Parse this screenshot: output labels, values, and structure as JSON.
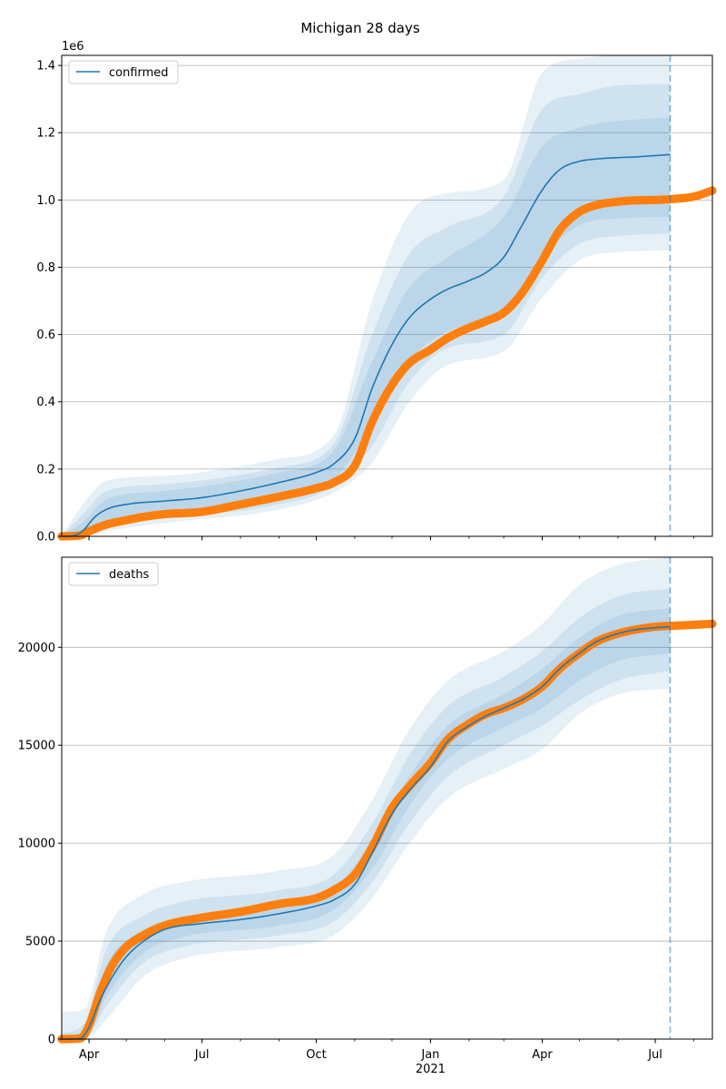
{
  "figure": {
    "title": "Michigan 28 days"
  },
  "colors": {
    "model": "#1f77b4",
    "observed": "#ff7f0e",
    "band": "#1f77b4",
    "grid": "#b0b0b0",
    "vline": "#1f77b4"
  },
  "chart_data": [
    {
      "type": "line",
      "panel": "confirmed",
      "title": "Michigan 28 days",
      "xlabel": "",
      "ylabel": "",
      "y_offset_label": "1e6",
      "legend": {
        "labels": [
          "confirmed"
        ],
        "placement": "top-left"
      },
      "grid": "y",
      "x_range": [
        "2020-03-10",
        "2021-08-16"
      ],
      "ylim": [
        0,
        1430000
      ],
      "y_ticks": [
        {
          "value": 0,
          "label": "0.0"
        },
        {
          "value": 200000,
          "label": "0.2"
        },
        {
          "value": 400000,
          "label": "0.4"
        },
        {
          "value": 600000,
          "label": "0.6"
        },
        {
          "value": 800000,
          "label": "0.8"
        },
        {
          "value": 1000000,
          "label": "1.0"
        },
        {
          "value": 1200000,
          "label": "1.2"
        },
        {
          "value": 1400000,
          "label": "1.4"
        }
      ],
      "forecast_date": "2021-07-13",
      "series": [
        {
          "name": "confirmed",
          "role": "model median",
          "x": [
            "2020-03-10",
            "2020-03-20",
            "2020-03-28",
            "2020-04-05",
            "2020-04-15",
            "2020-05-01",
            "2020-06-01",
            "2020-07-01",
            "2020-08-01",
            "2020-09-01",
            "2020-10-01",
            "2020-10-15",
            "2020-11-01",
            "2020-11-15",
            "2020-12-01",
            "2020-12-15",
            "2021-01-01",
            "2021-01-15",
            "2021-02-01",
            "2021-02-15",
            "2021-03-01",
            "2021-03-15",
            "2021-04-01",
            "2021-04-15",
            "2021-05-01",
            "2021-05-15",
            "2021-06-01",
            "2021-06-15",
            "2021-07-01",
            "2021-07-13"
          ],
          "y": [
            0,
            2000,
            20000,
            55000,
            80000,
            95000,
            105000,
            115000,
            135000,
            160000,
            190000,
            215000,
            290000,
            440000,
            570000,
            650000,
            705000,
            735000,
            760000,
            785000,
            830000,
            920000,
            1030000,
            1090000,
            1115000,
            1122000,
            1126000,
            1128000,
            1132000,
            1135000
          ]
        },
        {
          "name": "",
          "role": "observed",
          "x": [
            "2020-03-10",
            "2020-03-25",
            "2020-04-01",
            "2020-04-15",
            "2020-05-01",
            "2020-05-15",
            "2020-06-01",
            "2020-07-01",
            "2020-08-01",
            "2020-09-01",
            "2020-10-01",
            "2020-10-15",
            "2020-11-01",
            "2020-11-15",
            "2020-12-01",
            "2020-12-15",
            "2021-01-01",
            "2021-01-15",
            "2021-02-01",
            "2021-02-15",
            "2021-03-01",
            "2021-03-15",
            "2021-04-01",
            "2021-04-15",
            "2021-05-01",
            "2021-05-15",
            "2021-06-01",
            "2021-06-15",
            "2021-07-01",
            "2021-07-15",
            "2021-08-01",
            "2021-08-16"
          ],
          "y": [
            0,
            3000,
            15000,
            35000,
            48000,
            58000,
            66000,
            73000,
            95000,
            118000,
            143000,
            160000,
            210000,
            340000,
            450000,
            515000,
            555000,
            590000,
            620000,
            640000,
            665000,
            720000,
            820000,
            910000,
            965000,
            985000,
            995000,
            999000,
            1000000,
            1003000,
            1010000,
            1028000
          ]
        }
      ],
      "bands": [
        {
          "name": "",
          "x": [
            "2020-03-10",
            "2020-03-28",
            "2020-04-15",
            "2020-06-01",
            "2020-09-01",
            "2020-10-15",
            "2020-11-15",
            "2020-12-15",
            "2021-01-15",
            "2021-03-01",
            "2021-04-01",
            "2021-05-01",
            "2021-06-01",
            "2021-07-13"
          ],
          "lower": [
            0,
            0,
            45000,
            70000,
            115000,
            170000,
            330000,
            520000,
            610000,
            660000,
            830000,
            925000,
            945000,
            950000
          ],
          "upper": [
            0,
            45000,
            110000,
            135000,
            190000,
            255000,
            520000,
            740000,
            830000,
            950000,
            1160000,
            1215000,
            1235000,
            1245000
          ]
        },
        {
          "name": "",
          "x": [
            "2020-03-10",
            "2020-03-28",
            "2020-04-15",
            "2020-06-01",
            "2020-09-01",
            "2020-10-15",
            "2020-11-15",
            "2020-12-15",
            "2021-01-15",
            "2021-03-01",
            "2021-04-01",
            "2021-05-01",
            "2021-06-01",
            "2021-07-13"
          ],
          "lower": [
            0,
            0,
            30000,
            55000,
            95000,
            150000,
            270000,
            460000,
            560000,
            600000,
            770000,
            870000,
            893000,
            900000
          ],
          "upper": [
            0,
            70000,
            135000,
            155000,
            205000,
            275000,
            600000,
            840000,
            920000,
            1010000,
            1270000,
            1315000,
            1340000,
            1345000
          ]
        },
        {
          "name": "",
          "x": [
            "2020-03-10",
            "2020-03-28",
            "2020-04-15",
            "2020-06-01",
            "2020-09-01",
            "2020-10-15",
            "2020-11-15",
            "2020-12-15",
            "2021-01-15",
            "2021-03-01",
            "2021-04-01",
            "2021-05-01",
            "2021-06-01",
            "2021-07-13"
          ],
          "lower": [
            0,
            0,
            15000,
            40000,
            80000,
            130000,
            220000,
            400000,
            510000,
            550000,
            710000,
            820000,
            845000,
            850000
          ],
          "upper": [
            0,
            100000,
            165000,
            180000,
            230000,
            300000,
            700000,
            960000,
            1020000,
            1060000,
            1380000,
            1420000,
            1430000,
            1430000
          ]
        }
      ]
    },
    {
      "type": "line",
      "panel": "deaths",
      "title": "",
      "xlabel": "",
      "ylabel": "",
      "legend": {
        "labels": [
          "deaths"
        ],
        "placement": "top-left"
      },
      "grid": "y",
      "x_range": [
        "2020-03-10",
        "2021-08-16"
      ],
      "ylim": [
        0,
        24600
      ],
      "y_ticks": [
        {
          "value": 0,
          "label": "0"
        },
        {
          "value": 5000,
          "label": "5000"
        },
        {
          "value": 10000,
          "label": "10000"
        },
        {
          "value": 15000,
          "label": "15000"
        },
        {
          "value": 20000,
          "label": "20000"
        }
      ],
      "x_ticks": [
        {
          "value": "2020-04-01",
          "label": "Apr"
        },
        {
          "value": "2020-07-01",
          "label": "Jul"
        },
        {
          "value": "2020-10-01",
          "label": "Oct"
        },
        {
          "value": "2021-01-01",
          "label": "Jan"
        },
        {
          "value": "2021-04-01",
          "label": "Apr"
        },
        {
          "value": "2021-07-01",
          "label": "Jul"
        }
      ],
      "x_year_label": {
        "value": "2021-01-01",
        "label": "2021"
      },
      "forecast_date": "2021-07-13",
      "series": [
        {
          "name": "deaths",
          "role": "model median",
          "x": [
            "2020-03-10",
            "2020-03-25",
            "2020-04-01",
            "2020-04-10",
            "2020-04-20",
            "2020-05-01",
            "2020-05-15",
            "2020-06-01",
            "2020-07-01",
            "2020-08-01",
            "2020-09-01",
            "2020-10-01",
            "2020-10-15",
            "2020-11-01",
            "2020-11-15",
            "2020-12-01",
            "2020-12-15",
            "2021-01-01",
            "2021-01-15",
            "2021-02-01",
            "2021-02-15",
            "2021-03-01",
            "2021-03-15",
            "2021-04-01",
            "2021-04-15",
            "2021-05-01",
            "2021-05-15",
            "2021-06-01",
            "2021-06-15",
            "2021-07-01",
            "2021-07-13"
          ],
          "y": [
            0,
            20,
            600,
            2000,
            3200,
            4200,
            5000,
            5600,
            5900,
            6100,
            6400,
            6800,
            7100,
            7900,
            9500,
            11500,
            12700,
            13900,
            15200,
            16000,
            16500,
            16900,
            17300,
            18000,
            18900,
            19700,
            20300,
            20700,
            20900,
            21000,
            21050
          ]
        },
        {
          "name": "",
          "role": "observed",
          "x": [
            "2020-03-10",
            "2020-03-25",
            "2020-04-01",
            "2020-04-10",
            "2020-04-20",
            "2020-05-01",
            "2020-05-15",
            "2020-06-01",
            "2020-07-01",
            "2020-08-01",
            "2020-09-01",
            "2020-10-01",
            "2020-10-15",
            "2020-11-01",
            "2020-11-15",
            "2020-12-01",
            "2020-12-15",
            "2021-01-01",
            "2021-01-15",
            "2021-02-01",
            "2021-02-15",
            "2021-03-01",
            "2021-03-15",
            "2021-04-01",
            "2021-04-15",
            "2021-05-01",
            "2021-05-15",
            "2021-06-01",
            "2021-06-15",
            "2021-07-01",
            "2021-07-15",
            "2021-08-01",
            "2021-08-16"
          ],
          "y": [
            0,
            40,
            700,
            2400,
            3800,
            4700,
            5300,
            5800,
            6200,
            6500,
            6900,
            7200,
            7600,
            8400,
            9800,
            11800,
            12900,
            14100,
            15300,
            16100,
            16600,
            16900,
            17300,
            18000,
            18900,
            19700,
            20300,
            20700,
            20900,
            21050,
            21100,
            21150,
            21200
          ]
        }
      ],
      "bands": [
        {
          "name": "",
          "x": [
            "2020-03-10",
            "2020-03-28",
            "2020-04-15",
            "2020-05-15",
            "2020-06-15",
            "2020-09-01",
            "2020-10-15",
            "2020-11-15",
            "2020-12-15",
            "2021-01-15",
            "2021-03-01",
            "2021-04-01",
            "2021-05-01",
            "2021-06-01",
            "2021-07-13"
          ],
          "lower": [
            0,
            0,
            2200,
            4400,
            5200,
            5800,
            6600,
            8700,
            11900,
            14300,
            15900,
            16900,
            18300,
            19300,
            19700
          ],
          "upper": [
            0,
            500,
            3800,
            5600,
            6200,
            6900,
            7700,
            10100,
            13400,
            16000,
            17600,
            18900,
            20500,
            21600,
            22000
          ]
        },
        {
          "name": "",
          "x": [
            "2020-03-10",
            "2020-03-28",
            "2020-04-15",
            "2020-05-15",
            "2020-06-15",
            "2020-09-01",
            "2020-10-15",
            "2020-11-15",
            "2020-12-15",
            "2021-01-15",
            "2021-03-01",
            "2021-04-01",
            "2021-05-01",
            "2021-06-01",
            "2021-07-13"
          ],
          "lower": [
            0,
            0,
            1700,
            3900,
            4700,
            5300,
            6000,
            8000,
            11000,
            13400,
            15000,
            16000,
            17300,
            18300,
            18800
          ],
          "upper": [
            300,
            800,
            4600,
            6300,
            7000,
            7600,
            8400,
            11000,
            14500,
            17000,
            18500,
            19800,
            21500,
            22600,
            23000
          ]
        },
        {
          "name": "",
          "x": [
            "2020-03-10",
            "2020-03-28",
            "2020-04-15",
            "2020-05-15",
            "2020-06-15",
            "2020-09-01",
            "2020-10-15",
            "2020-11-15",
            "2020-12-15",
            "2021-01-15",
            "2021-03-01",
            "2021-04-01",
            "2021-05-01",
            "2021-06-01",
            "2021-07-13"
          ],
          "lower": [
            0,
            0,
            1000,
            3200,
            4100,
            4700,
            5300,
            7200,
            10000,
            12300,
            13800,
            14800,
            16600,
            17600,
            17900
          ],
          "upper": [
            1400,
            1500,
            5500,
            7400,
            8000,
            8600,
            9400,
            12200,
            15800,
            18300,
            19800,
            21200,
            23200,
            24200,
            24600
          ]
        }
      ]
    }
  ]
}
